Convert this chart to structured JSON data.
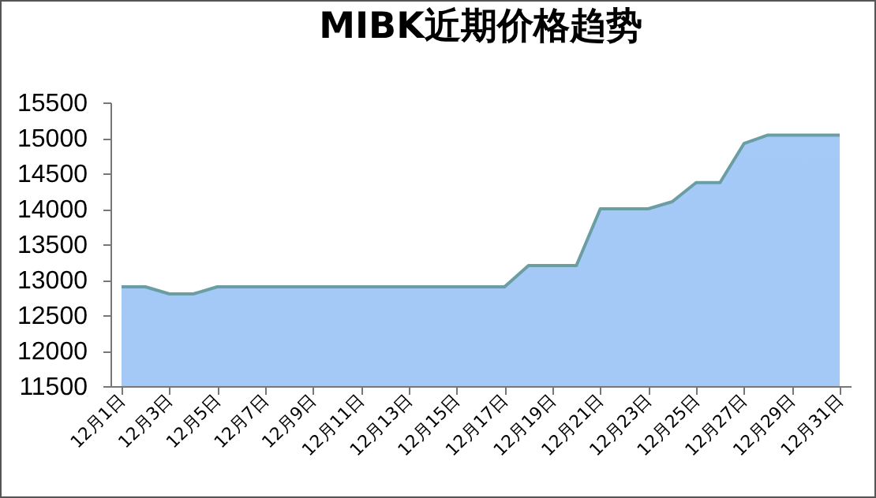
{
  "chart_data": {
    "type": "area",
    "title": "MIBK近期价格趋势",
    "categories": [
      "12月1日",
      null,
      "12月3日",
      null,
      "12月5日",
      null,
      "12月7日",
      null,
      "12月9日",
      null,
      "12月11日",
      null,
      "12月13日",
      null,
      "12月15日",
      null,
      "12月17日",
      null,
      "12月19日",
      null,
      "12月21日",
      null,
      "12月23日",
      null,
      "12月25日",
      null,
      "12月27日",
      null,
      "12月29日",
      null,
      "12月31日"
    ],
    "series": [
      {
        "color": "#6b9ea3",
        "values": [
          12900,
          12900,
          12800,
          12800,
          12900,
          12900,
          12900,
          12900,
          12900,
          12900,
          12900,
          12900,
          12900,
          12900,
          12900,
          12900,
          12900,
          13200,
          13200,
          13200,
          14000,
          14000,
          14000,
          14100,
          14370,
          14370,
          14920,
          15040,
          15040,
          15040,
          15040
        ]
      }
    ],
    "ylim": [
      11500,
      15500
    ],
    "yticks": [
      11500,
      12000,
      12500,
      13000,
      13500,
      14000,
      14500,
      15000,
      15500
    ],
    "grid": false
  }
}
